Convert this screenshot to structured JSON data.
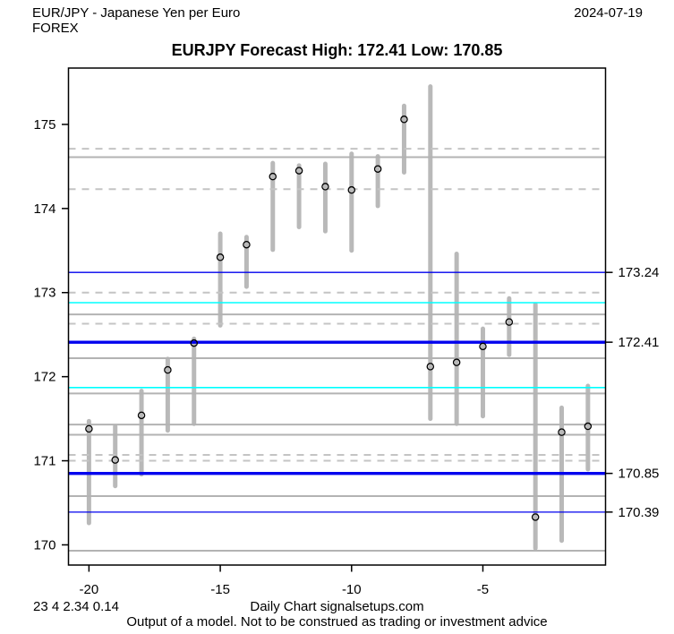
{
  "header": {
    "instrument": "EUR/JPY - Japanese Yen per Euro",
    "exchange": "FOREX",
    "date": "2024-07-19"
  },
  "title": "EURJPY Forecast High: 172.41 Low: 170.85",
  "footer": {
    "stats": "23 4 2.34 0.14",
    "source": "Daily Chart signalsetups.com",
    "disclaimer": "Output of a model. Not to be construed as trading or investment advice"
  },
  "colors": {
    "blue_line": "#0000EE",
    "cyan_line": "#00FFFF",
    "gray_solid_line": "#B3B3B3",
    "gray_dashed_line": "#C4C4C4",
    "bar": "#B9B9B9",
    "marker_stroke": "#000000",
    "frame": "#000000"
  },
  "chart_data": {
    "type": "hlc-range",
    "title": "EURJPY Forecast High: 172.41 Low: 170.85",
    "xlabel": "",
    "ylabel": "",
    "xlim": [
      -20.78,
      -0.33
    ],
    "ylim": [
      169.76,
      175.67
    ],
    "x_ticks": [
      "-20",
      "-15",
      "-10",
      "-5"
    ],
    "x_tick_values": [
      -20,
      -15,
      -10,
      -5
    ],
    "y_ticks": [
      "170",
      "171",
      "172",
      "173",
      "174",
      "175"
    ],
    "y_tick_values": [
      170,
      171,
      172,
      173,
      174,
      175
    ],
    "grid": false,
    "legend_position": "none",
    "bars": [
      {
        "x": -20,
        "high": 171.47,
        "low": 170.26,
        "close": 171.38
      },
      {
        "x": -19,
        "high": 171.41,
        "low": 170.7,
        "close": 171.01
      },
      {
        "x": -18,
        "high": 171.83,
        "low": 170.84,
        "close": 171.54
      },
      {
        "x": -17,
        "high": 172.21,
        "low": 171.36,
        "close": 172.08
      },
      {
        "x": -16,
        "high": 172.45,
        "low": 171.44,
        "close": 172.4
      },
      {
        "x": -15,
        "high": 173.7,
        "low": 172.61,
        "close": 173.42
      },
      {
        "x": -14,
        "high": 173.66,
        "low": 173.07,
        "close": 173.57
      },
      {
        "x": -13,
        "high": 174.54,
        "low": 173.51,
        "close": 174.38
      },
      {
        "x": -12,
        "high": 174.51,
        "low": 173.78,
        "close": 174.45
      },
      {
        "x": -11,
        "high": 174.53,
        "low": 173.73,
        "close": 174.26
      },
      {
        "x": -10,
        "high": 174.65,
        "low": 173.5,
        "close": 174.22
      },
      {
        "x": -9,
        "high": 174.62,
        "low": 174.03,
        "close": 174.47
      },
      {
        "x": -8,
        "high": 175.22,
        "low": 174.43,
        "close": 175.06
      },
      {
        "x": -7,
        "high": 175.45,
        "low": 171.5,
        "close": 172.12
      },
      {
        "x": -6,
        "high": 173.46,
        "low": 171.44,
        "close": 172.17
      },
      {
        "x": -5,
        "high": 172.57,
        "low": 171.53,
        "close": 172.36
      },
      {
        "x": -4,
        "high": 172.93,
        "low": 172.26,
        "close": 172.65
      },
      {
        "x": -3,
        "high": 172.86,
        "low": 169.96,
        "close": 170.33
      },
      {
        "x": -2,
        "high": 171.63,
        "low": 170.05,
        "close": 171.34
      },
      {
        "x": -1,
        "high": 171.89,
        "low": 170.9,
        "close": 171.41
      }
    ],
    "hlines": [
      {
        "value": 174.71,
        "kind": "dashed"
      },
      {
        "value": 174.61,
        "kind": "gray"
      },
      {
        "value": 174.23,
        "kind": "dashed"
      },
      {
        "value": 173.24,
        "kind": "blue_thin",
        "label": "173.24"
      },
      {
        "value": 173.0,
        "kind": "dashed"
      },
      {
        "value": 172.88,
        "kind": "cyan"
      },
      {
        "value": 172.74,
        "kind": "gray"
      },
      {
        "value": 172.63,
        "kind": "dashed"
      },
      {
        "value": 172.41,
        "kind": "blue_thick",
        "label": "172.41"
      },
      {
        "value": 172.22,
        "kind": "gray"
      },
      {
        "value": 171.87,
        "kind": "cyan"
      },
      {
        "value": 171.8,
        "kind": "gray"
      },
      {
        "value": 171.43,
        "kind": "gray"
      },
      {
        "value": 171.31,
        "kind": "gray"
      },
      {
        "value": 171.07,
        "kind": "dashed"
      },
      {
        "value": 171.0,
        "kind": "dashed"
      },
      {
        "value": 170.85,
        "kind": "blue_thick",
        "label": "170.85"
      },
      {
        "value": 170.58,
        "kind": "gray"
      },
      {
        "value": 170.39,
        "kind": "blue_thin",
        "label": "170.39"
      },
      {
        "value": 169.93,
        "kind": "gray"
      }
    ]
  }
}
